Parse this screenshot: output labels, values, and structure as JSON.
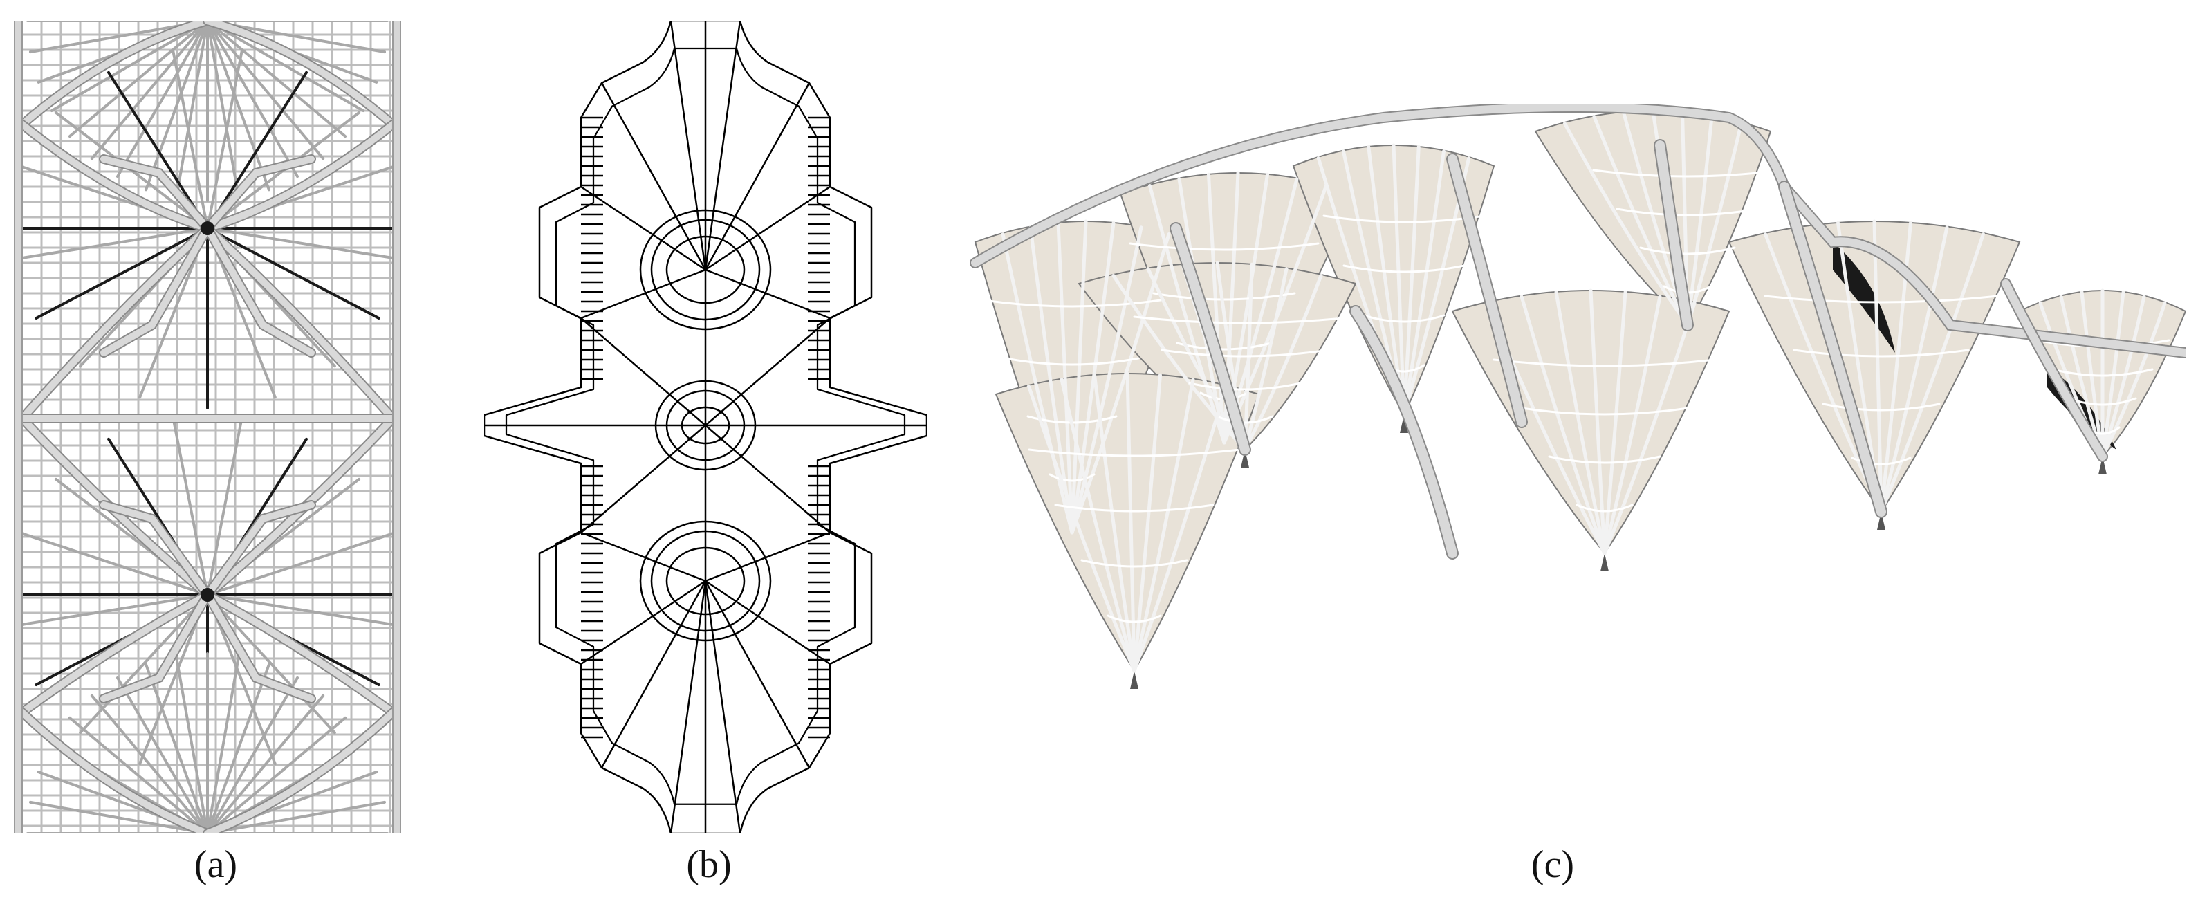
{
  "figure": {
    "panels": [
      {
        "id": "a",
        "caption": "(a)"
      },
      {
        "id": "b",
        "caption": "(b)"
      },
      {
        "id": "c",
        "caption": "(c)"
      }
    ]
  },
  "colors": {
    "background": "#ffffff",
    "rib_light": "#d9d9d9",
    "rib_shadow": "#8a8a8a",
    "rib_dark": "#1a1a1a",
    "line_drawing": "#000000",
    "infill_panel": "#e8e2d8",
    "caption_text": "#111111"
  }
}
